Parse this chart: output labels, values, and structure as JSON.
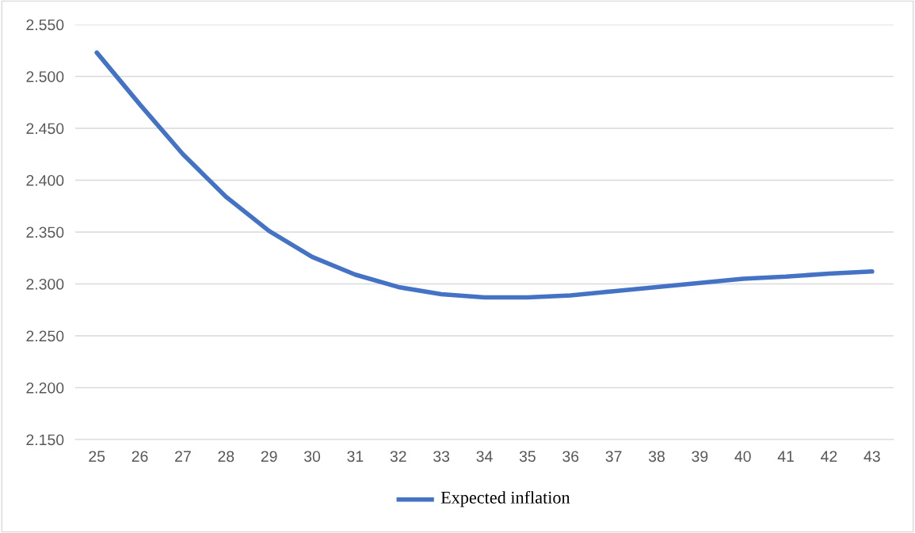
{
  "chart_data": {
    "type": "line",
    "categories": [
      "25",
      "26",
      "27",
      "28",
      "29",
      "30",
      "31",
      "32",
      "33",
      "34",
      "35",
      "36",
      "37",
      "38",
      "39",
      "40",
      "41",
      "42",
      "43"
    ],
    "series": [
      {
        "name": "Expected inflation",
        "color": "#4472c4",
        "values": [
          2.523,
          2.473,
          2.425,
          2.384,
          2.351,
          2.326,
          2.309,
          2.297,
          2.29,
          2.287,
          2.287,
          2.289,
          2.293,
          2.297,
          2.301,
          2.305,
          2.307,
          2.31,
          2.312
        ]
      }
    ],
    "ylim": [
      2.15,
      2.55
    ],
    "yticks": [
      {
        "value": 2.15,
        "label": "2.150"
      },
      {
        "value": 2.2,
        "label": "2.200"
      },
      {
        "value": 2.25,
        "label": "2.250"
      },
      {
        "value": 2.3,
        "label": "2.300"
      },
      {
        "value": 2.35,
        "label": "2.350"
      },
      {
        "value": 2.4,
        "label": "2.400"
      },
      {
        "value": 2.45,
        "label": "2.450"
      },
      {
        "value": 2.5,
        "label": "2.500"
      },
      {
        "value": 2.55,
        "label": "2.550"
      }
    ],
    "grid": "y",
    "legend": "bottom",
    "marker": "none",
    "line_style": "solid"
  }
}
